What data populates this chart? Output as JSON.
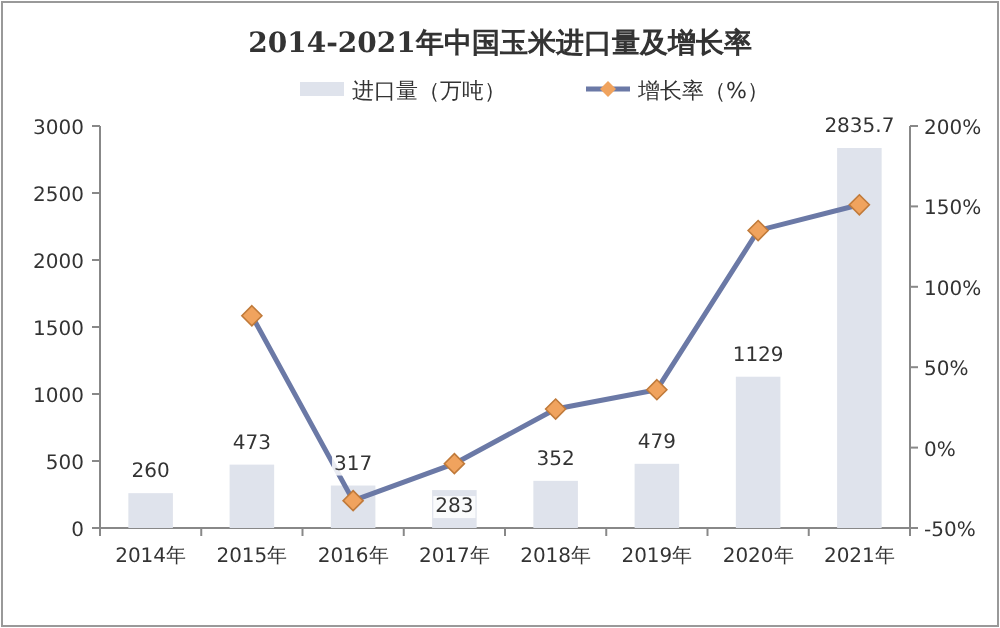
{
  "chart_data": {
    "type": "bar",
    "title": "2014-2021年中国玉米进口量及增长率",
    "categories": [
      "2014年",
      "2015年",
      "2016年",
      "2017年",
      "2018年",
      "2019年",
      "2020年",
      "2021年"
    ],
    "series": [
      {
        "name": "进口量（万吨）",
        "color": "#dfe3ec",
        "values": [
          260,
          473,
          317,
          283,
          352,
          479,
          1129,
          2835.7
        ],
        "value_labels": [
          "260",
          "473",
          "317",
          "283",
          "352",
          "479",
          "1129",
          "2835.7"
        ]
      },
      {
        "name": "增长率（%）",
        "type": "line",
        "axis": "y2",
        "color": "#6b79a6",
        "colors": [
          null,
          "#f0a35e",
          "#f0a35e",
          "#f0a35e",
          "#f0a35e",
          "#f0a35e",
          "#f0a35e",
          "#f0a35e"
        ],
        "marker": "diamond",
        "values": [
          null,
          82,
          -33,
          -10,
          24,
          36,
          135,
          151
        ]
      }
    ],
    "ylim": [
      0,
      3000
    ],
    "yticks": [
      0,
      500,
      1000,
      1500,
      2000,
      2500,
      3000
    ],
    "y2lim": [
      -50,
      200
    ],
    "y2ticks": [
      {
        "value": -50,
        "label": "-50%"
      },
      {
        "value": 0,
        "label": "0%"
      },
      {
        "value": 50,
        "label": "50%"
      },
      {
        "value": 100,
        "label": "100%"
      },
      {
        "value": 150,
        "label": "150%"
      },
      {
        "value": 200,
        "label": "200%"
      }
    ],
    "legend": "top"
  }
}
